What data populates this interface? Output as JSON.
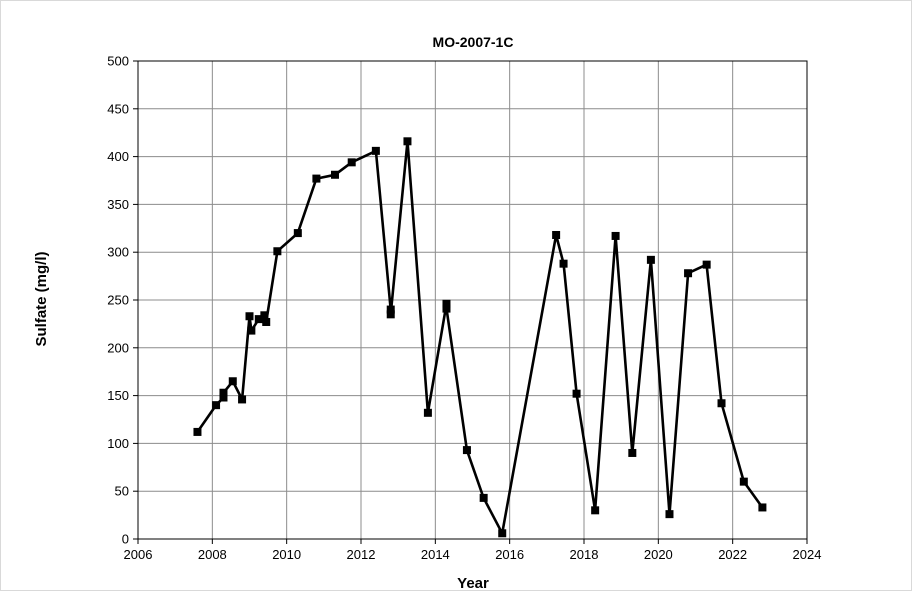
{
  "chart_data": {
    "type": "line",
    "title": "MO-2007-1C",
    "xlabel": "Year",
    "ylabel": "Sulfate (mg/l)",
    "xlim": [
      2006,
      2024
    ],
    "ylim": [
      0,
      500
    ],
    "xticks": [
      2006,
      2008,
      2010,
      2012,
      2014,
      2016,
      2018,
      2020,
      2022,
      2024
    ],
    "yticks": [
      0,
      50,
      100,
      150,
      200,
      250,
      300,
      350,
      400,
      450,
      500
    ],
    "grid": true,
    "legend": "none",
    "marker": "square",
    "line_color": "#000000",
    "series": [
      {
        "points": [
          [
            2007.6,
            112
          ],
          [
            2008.1,
            140
          ],
          [
            2008.3,
            148
          ],
          [
            2008.3,
            153
          ],
          [
            2008.55,
            165
          ],
          [
            2008.8,
            146
          ],
          [
            2009.0,
            233
          ],
          [
            2009.05,
            218
          ],
          [
            2009.25,
            230
          ],
          [
            2009.4,
            234
          ],
          [
            2009.45,
            227
          ],
          [
            2009.75,
            301
          ],
          [
            2010.3,
            320
          ],
          [
            2010.8,
            377
          ],
          [
            2011.3,
            381
          ],
          [
            2011.75,
            394
          ],
          [
            2012.4,
            406
          ],
          [
            2012.8,
            240
          ],
          [
            2012.8,
            235
          ],
          [
            2013.25,
            416
          ],
          [
            2013.8,
            132
          ],
          [
            2014.3,
            246
          ],
          [
            2014.3,
            241
          ],
          [
            2014.85,
            93
          ],
          [
            2015.3,
            43
          ],
          [
            2015.8,
            6
          ],
          [
            2017.25,
            318
          ],
          [
            2017.45,
            288
          ],
          [
            2017.8,
            152
          ],
          [
            2018.3,
            30
          ],
          [
            2018.85,
            317
          ],
          [
            2019.3,
            90
          ],
          [
            2019.8,
            292
          ],
          [
            2020.3,
            26
          ],
          [
            2020.8,
            278
          ],
          [
            2021.3,
            287
          ],
          [
            2021.7,
            142
          ],
          [
            2022.3,
            60
          ],
          [
            2022.8,
            33
          ]
        ]
      }
    ]
  }
}
